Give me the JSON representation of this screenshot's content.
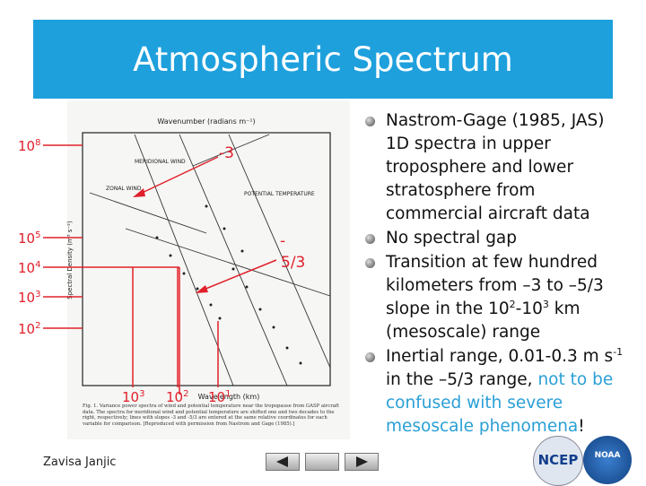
{
  "title": "Atmospheric Spectrum",
  "figure": {
    "top_axis_label": "Wavenumber (radians m⁻¹)",
    "y_axis_label": "Spectral Density (m³ s⁻²)",
    "bottom_axis_label": "Wavelength (km)",
    "curve_labels": [
      "MERIDIONAL WIND",
      "ZONAL WIND",
      "POTENTIAL TEMPERATURE"
    ],
    "caption": "Fig. 1. Variance power spectra of wind and potential temperature near the tropopause from GASP aircraft data. The spectra for meridional wind and potential temperature are shifted one and two decades to the right, respectively; lines with slopes -3 and -5/3 are entered at the same relative coordinates for each variable for comparison. [Reproduced with permission from Nastrom and Gage (1985).]"
  },
  "annotations": {
    "left": [
      {
        "base": "10",
        "exp": "8"
      },
      {
        "base": "10",
        "exp": "5"
      },
      {
        "base": "10",
        "exp": "4"
      },
      {
        "base": "10",
        "exp": "3"
      },
      {
        "base": "10",
        "exp": "2"
      }
    ],
    "bottom": [
      {
        "base": "10",
        "exp": "3"
      },
      {
        "base": "10",
        "exp": "2"
      },
      {
        "base": "10",
        "exp": "1"
      }
    ],
    "slope_steep": "-3",
    "slope_shallow": [
      "-",
      "5/3"
    ]
  },
  "bullets": [
    [
      {
        "text": "Nastrom-Gage (1985, JAS) 1D spectra in upper troposphere and lower stratosphere from commercial aircraft data"
      }
    ],
    [
      {
        "text": "No spectral gap"
      }
    ],
    [
      {
        "text": "Transition at few hundred kilometers from –3 to –5/3 slope in the 10"
      },
      {
        "text": "2",
        "style": "sup"
      },
      {
        "text": "-10"
      },
      {
        "text": "3",
        "style": "sup"
      },
      {
        "text": " km (mesoscale) range"
      }
    ],
    [
      {
        "text": "Inertial range, 0.01-0.3 m s"
      },
      {
        "text": "-1",
        "style": "sup"
      },
      {
        "text": " in the –5/3 range, "
      },
      {
        "text": "not to be confused with severe mesoscale phenomena",
        "style": "link"
      },
      {
        "text": "!"
      }
    ]
  ],
  "footer": {
    "author": "Zavisa Janjic",
    "logos": [
      "NCEP",
      "NOAA"
    ]
  }
}
